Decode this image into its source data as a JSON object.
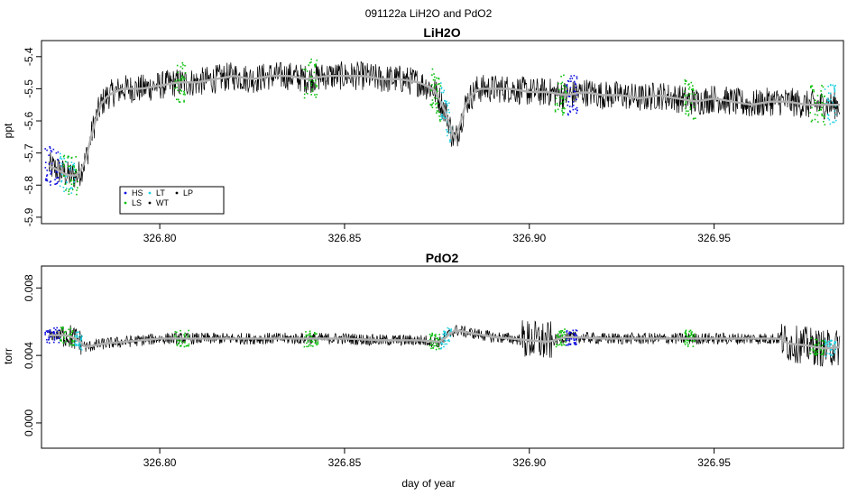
{
  "figure_title": "091122a   LiH2O and PdO2",
  "chart_data": [
    {
      "type": "line",
      "title": "LiH2O",
      "xlabel": "",
      "ylabel": "ppt",
      "xlim": [
        326.768,
        326.985
      ],
      "ylim": [
        -5.92,
        -5.35
      ],
      "x_ticks": [
        326.8,
        326.85,
        326.9,
        326.95
      ],
      "x_tick_labels": [
        "326.80",
        "326.85",
        "326.90",
        "326.95"
      ],
      "y_ticks": [
        -5.4,
        -5.5,
        -5.6,
        -5.7,
        -5.8,
        -5.9
      ],
      "y_tick_labels": [
        "-5.4",
        "-5.5",
        "-5.6",
        "-5.7",
        "-5.8",
        "-5.9"
      ],
      "grid": false,
      "legend_position": "bottom-left",
      "legend": [
        {
          "label": "HS",
          "color": "#1010e0"
        },
        {
          "label": "LT",
          "color": "#20d0e0"
        },
        {
          "label": "LP",
          "color": "#000000"
        },
        {
          "label": "LS",
          "color": "#10c010"
        },
        {
          "label": "WT",
          "color": "#000000"
        }
      ],
      "series": [
        {
          "color": "#000000",
          "x": [
            326.77,
            326.772,
            326.775,
            326.778,
            326.78,
            326.782,
            326.784,
            326.786,
            326.79,
            326.795,
            326.8,
            326.805,
            326.81,
            326.815,
            326.82,
            326.825,
            326.83,
            326.835,
            326.84,
            326.845,
            326.85,
            326.855,
            326.86,
            326.865,
            326.87,
            326.874,
            326.876,
            326.878,
            326.879,
            326.88,
            326.881,
            326.883,
            326.886,
            326.89,
            326.895,
            326.9,
            326.905,
            326.91,
            326.915,
            326.92,
            326.925,
            326.93,
            326.935,
            326.94,
            326.945,
            326.95,
            326.955,
            326.96,
            326.965,
            326.97,
            326.975,
            326.98,
            326.984
          ],
          "y": [
            -5.74,
            -5.75,
            -5.77,
            -5.77,
            -5.72,
            -5.62,
            -5.55,
            -5.52,
            -5.5,
            -5.5,
            -5.49,
            -5.48,
            -5.48,
            -5.47,
            -5.46,
            -5.47,
            -5.46,
            -5.46,
            -5.47,
            -5.46,
            -5.46,
            -5.46,
            -5.47,
            -5.47,
            -5.48,
            -5.5,
            -5.54,
            -5.59,
            -5.64,
            -5.66,
            -5.62,
            -5.54,
            -5.5,
            -5.5,
            -5.5,
            -5.51,
            -5.51,
            -5.52,
            -5.51,
            -5.52,
            -5.52,
            -5.53,
            -5.52,
            -5.53,
            -5.54,
            -5.53,
            -5.54,
            -5.55,
            -5.54,
            -5.54,
            -5.55,
            -5.55,
            -5.55
          ],
          "noise": 0.045
        }
      ],
      "flag_segments": [
        {
          "label": "HS",
          "x": [
            326.769,
            326.773
          ],
          "color": "#1010e0"
        },
        {
          "label": "LT",
          "x": [
            326.773,
            326.777
          ],
          "color": "#20d0e0"
        },
        {
          "label": "LS",
          "x": [
            326.774,
            326.778
          ],
          "color": "#10c010"
        },
        {
          "label": "LS",
          "x": [
            326.804,
            326.807
          ],
          "color": "#10c010"
        },
        {
          "label": "LS",
          "x": [
            326.839,
            326.843
          ],
          "color": "#10c010"
        },
        {
          "label": "LS",
          "x": [
            326.873,
            326.876
          ],
          "color": "#10c010"
        },
        {
          "label": "LT",
          "x": [
            326.876,
            326.879
          ],
          "color": "#20d0e0"
        },
        {
          "label": "LS",
          "x": [
            326.907,
            326.91
          ],
          "color": "#10c010"
        },
        {
          "label": "HS",
          "x": [
            326.91,
            326.913
          ],
          "color": "#1010e0"
        },
        {
          "label": "LS",
          "x": [
            326.942,
            326.945
          ],
          "color": "#10c010"
        },
        {
          "label": "LS",
          "x": [
            326.976,
            326.98
          ],
          "color": "#10c010"
        },
        {
          "label": "LT",
          "x": [
            326.98,
            326.983
          ],
          "color": "#20d0e0"
        }
      ]
    },
    {
      "type": "line",
      "title": "PdO2",
      "xlabel": "day of year",
      "ylabel": "torr",
      "xlim": [
        326.768,
        326.985
      ],
      "ylim": [
        -0.0015,
        0.0093
      ],
      "x_ticks": [
        326.8,
        326.85,
        326.9,
        326.95
      ],
      "x_tick_labels": [
        "326.80",
        "326.85",
        "326.90",
        "326.95"
      ],
      "y_ticks": [
        0.0,
        0.004,
        0.008
      ],
      "y_tick_labels": [
        "0.000",
        "0.004",
        "0.008"
      ],
      "grid": false,
      "series": [
        {
          "color": "#000000",
          "x": [
            326.77,
            326.775,
            326.778,
            326.78,
            326.785,
            326.79,
            326.8,
            326.81,
            326.82,
            326.83,
            326.84,
            326.85,
            326.86,
            326.87,
            326.876,
            326.878,
            326.88,
            326.885,
            326.89,
            326.895,
            326.9,
            326.905,
            326.91,
            326.92,
            326.93,
            326.94,
            326.95,
            326.96,
            326.968,
            326.97,
            326.975,
            326.98,
            326.984
          ],
          "y": [
            0.0052,
            0.0052,
            0.0049,
            0.0045,
            0.0047,
            0.0048,
            0.005,
            0.005,
            0.005,
            0.005,
            0.005,
            0.005,
            0.0049,
            0.0049,
            0.0048,
            0.0052,
            0.0055,
            0.0053,
            0.0051,
            0.005,
            0.0049,
            0.0048,
            0.0051,
            0.005,
            0.005,
            0.005,
            0.005,
            0.005,
            0.005,
            0.0047,
            0.0046,
            0.0044,
            0.0045
          ],
          "noise": 0.00035
        }
      ],
      "flag_segments": [
        {
          "label": "HS",
          "x": [
            326.769,
            326.773
          ],
          "color": "#1010e0"
        },
        {
          "label": "LS",
          "x": [
            326.773,
            326.777
          ],
          "color": "#10c010"
        },
        {
          "label": "LT",
          "x": [
            326.777,
            326.779
          ],
          "color": "#20d0e0"
        },
        {
          "label": "LS",
          "x": [
            326.804,
            326.808
          ],
          "color": "#10c010"
        },
        {
          "label": "LS",
          "x": [
            326.839,
            326.843
          ],
          "color": "#10c010"
        },
        {
          "label": "LS",
          "x": [
            326.873,
            326.876
          ],
          "color": "#10c010"
        },
        {
          "label": "LT",
          "x": [
            326.876,
            326.879
          ],
          "color": "#20d0e0"
        },
        {
          "label": "LS",
          "x": [
            326.907,
            326.91
          ],
          "color": "#10c010"
        },
        {
          "label": "HS",
          "x": [
            326.91,
            326.913
          ],
          "color": "#1010e0"
        },
        {
          "label": "LS",
          "x": [
            326.942,
            326.945
          ],
          "color": "#10c010"
        },
        {
          "label": "LS",
          "x": [
            326.976,
            326.98
          ],
          "color": "#10c010"
        },
        {
          "label": "LT",
          "x": [
            326.98,
            326.983
          ],
          "color": "#20d0e0"
        }
      ]
    }
  ]
}
